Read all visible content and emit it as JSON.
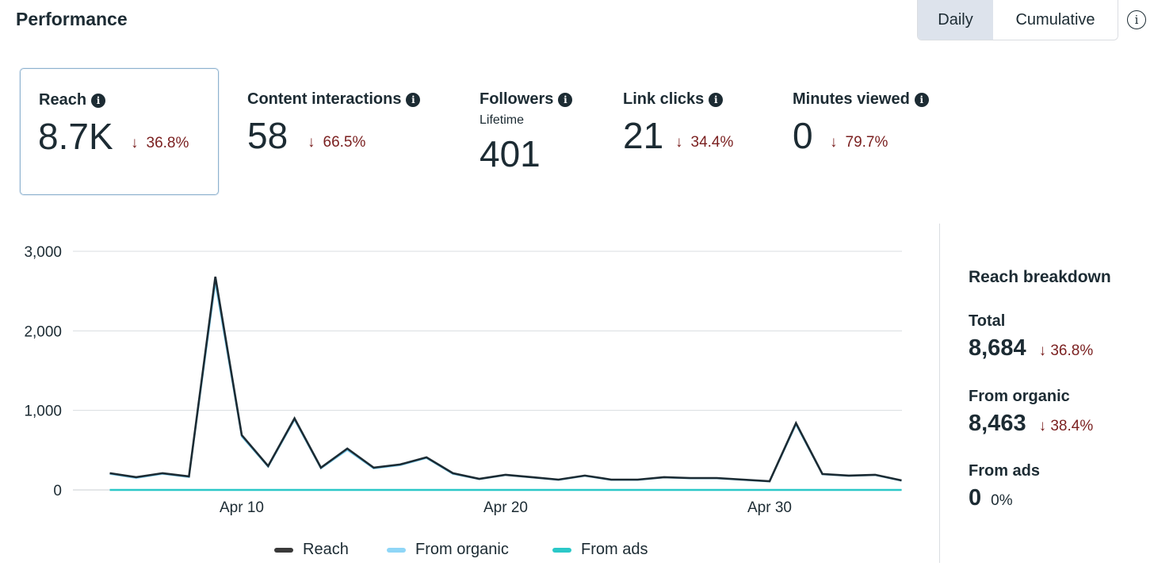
{
  "header": {
    "title": "Performance",
    "toggle": {
      "daily": "Daily",
      "cumulative": "Cumulative",
      "selected": "Daily"
    },
    "info_icon": "info-outline-icon"
  },
  "metrics": [
    {
      "label": "Reach",
      "value": "8.7K",
      "delta": "36.8%",
      "direction": "down",
      "selected": true
    },
    {
      "label": "Content interactions",
      "value": "58",
      "delta": "66.5%",
      "direction": "down"
    },
    {
      "label": "Followers",
      "sublabel": "Lifetime",
      "value": "401"
    },
    {
      "label": "Link clicks",
      "value": "21",
      "delta": "34.4%",
      "direction": "down"
    },
    {
      "label": "Minutes viewed",
      "value": "0",
      "delta": "79.7%",
      "direction": "down"
    }
  ],
  "chart_data": {
    "type": "line",
    "x_ticks": [
      "Apr 10",
      "Apr 20",
      "Apr 30"
    ],
    "y_ticks": [
      "3,000",
      "2,000",
      "1,000",
      "0"
    ],
    "ylim": [
      0,
      3000
    ],
    "grid": true,
    "x_start": "Apr 5",
    "x_end": "Apr 35",
    "series": [
      {
        "name": "Reach",
        "color": "#1c2b33",
        "values": [
          210,
          160,
          210,
          170,
          2680,
          690,
          300,
          900,
          280,
          520,
          280,
          320,
          410,
          210,
          140,
          190,
          160,
          130,
          180,
          130,
          130,
          160,
          150,
          150,
          130,
          110,
          840,
          200,
          180,
          190,
          120
        ]
      },
      {
        "name": "From organic",
        "color": "#7fd1f5",
        "values": [
          200,
          150,
          200,
          160,
          2600,
          670,
          290,
          880,
          270,
          500,
          270,
          310,
          400,
          200,
          135,
          185,
          155,
          125,
          175,
          125,
          125,
          155,
          145,
          145,
          125,
          105,
          820,
          195,
          175,
          185,
          115
        ]
      },
      {
        "name": "From ads",
        "color": "#2bc8c8",
        "values": [
          0,
          0,
          0,
          0,
          0,
          0,
          0,
          0,
          0,
          0,
          0,
          0,
          0,
          0,
          0,
          0,
          0,
          0,
          0,
          0,
          0,
          0,
          0,
          0,
          0,
          0,
          0,
          0,
          0,
          0,
          0
        ]
      }
    ]
  },
  "legend": [
    {
      "label": "Reach",
      "color": "#3a3a3a"
    },
    {
      "label": "From organic",
      "color": "#8fd6f7"
    },
    {
      "label": "From ads",
      "color": "#2bc8c8"
    }
  ],
  "breakdown": {
    "title": "Reach breakdown",
    "total": {
      "label": "Total",
      "value": "8,684",
      "delta": "36.8%"
    },
    "organic": {
      "label": "From organic",
      "value": "8,463",
      "delta": "38.4%"
    },
    "ads": {
      "label": "From ads",
      "value": "0",
      "delta": "0%"
    }
  }
}
